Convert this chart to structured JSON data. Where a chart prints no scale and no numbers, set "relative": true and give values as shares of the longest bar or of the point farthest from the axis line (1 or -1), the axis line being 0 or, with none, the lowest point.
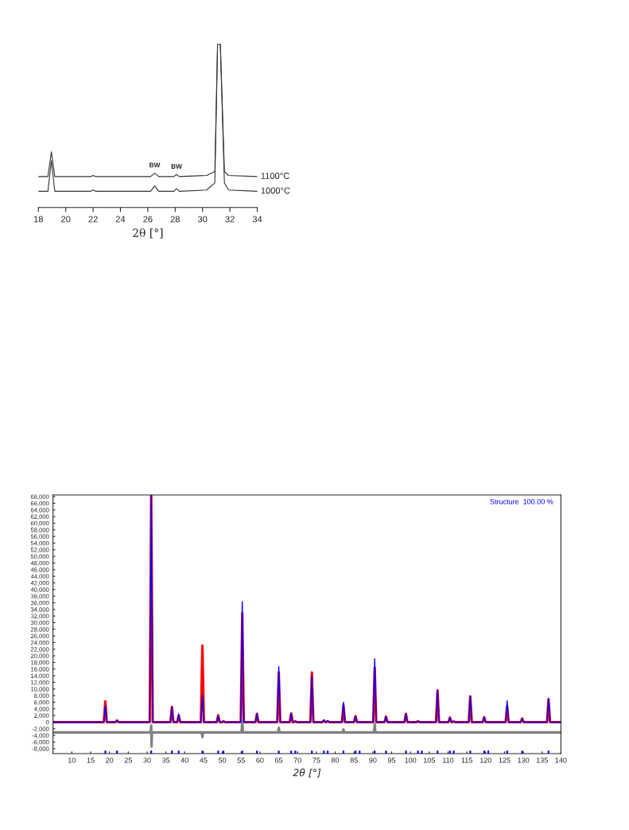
{
  "chart_data": [
    {
      "type": "line",
      "relative": true,
      "xlabel": "2θ [°]",
      "tick_labels": "x",
      "x": [
        18,
        18.7,
        18.95,
        19.2,
        21.8,
        22.0,
        22.2,
        26.2,
        26.5,
        26.8,
        27.9,
        28.1,
        28.3,
        30.3,
        30.9,
        31.1,
        31.3,
        31.6,
        31.9,
        34
      ],
      "xlim": [
        18,
        34
      ],
      "xticks": [
        18,
        20,
        22,
        24,
        26,
        28,
        30,
        32,
        34
      ],
      "series": [
        {
          "name": "1100°C",
          "color": "#333333",
          "values": [
            0.189,
            0.189,
            0.341,
            0.189,
            0.189,
            0.196,
            0.189,
            0.189,
            0.21,
            0.189,
            0.189,
            0.202,
            0.189,
            0.196,
            0.22,
            1,
            1,
            0.22,
            0.196,
            0.189
          ]
        },
        {
          "name": "1000°C",
          "color": "#333333",
          "values": [
            0.099,
            0.099,
            0.287,
            0.099,
            0.099,
            0.107,
            0.099,
            0.099,
            0.132,
            0.099,
            0.099,
            0.115,
            0.099,
            0.107,
            0.15,
            1,
            1,
            0.15,
            0.107,
            0.099
          ]
        }
      ],
      "annotations": [
        {
          "text": "BW",
          "x": 26.5,
          "y": 0.21
        },
        {
          "text": "BW",
          "x": 28.1,
          "y": 0.202
        }
      ],
      "grid": false,
      "legend": false
    },
    {
      "type": "line",
      "xlabel": "2θ [°]",
      "x": [
        5,
        18.5,
        18.9,
        19.3,
        21.6,
        22.0,
        22.4,
        30.7,
        31.1,
        31.5,
        36.2,
        36.6,
        37.0,
        38.0,
        38.4,
        38.8,
        44.3,
        44.7,
        45.1,
        48.5,
        48.9,
        49.3,
        49.9,
        50.3,
        50.7,
        54.9,
        55.3,
        55.7,
        58.8,
        59.2,
        59.6,
        64.6,
        65.0,
        65.4,
        67.9,
        68.3,
        68.7,
        69.0,
        69.4,
        69.8,
        73.4,
        73.8,
        74.2,
        76.6,
        77.0,
        77.4,
        77.6,
        78.0,
        78.4,
        81.8,
        82.2,
        82.6,
        85.0,
        85.4,
        85.8,
        90.1,
        90.5,
        90.9,
        93.1,
        93.5,
        93.9,
        98.4,
        98.8,
        99.2,
        101.6,
        102.0,
        102.4,
        106.8,
        107.2,
        107.6,
        110.1,
        110.5,
        110.9,
        111.1,
        111.5,
        111.9,
        115.5,
        115.9,
        116.3,
        119.2,
        119.6,
        120.0,
        125.3,
        125.7,
        126.1,
        129.3,
        129.7,
        130.1,
        136.3,
        136.7,
        137.1,
        140
      ],
      "xlim": [
        5,
        140
      ],
      "xticks": [
        10,
        15,
        20,
        25,
        30,
        35,
        40,
        45,
        50,
        55,
        60,
        65,
        70,
        75,
        80,
        85,
        90,
        95,
        100,
        105,
        110,
        115,
        120,
        125,
        130,
        135,
        140
      ],
      "ylim": [
        -9500,
        68500
      ],
      "yticks": [
        {
          "value": -8000,
          "label": "-8,000"
        },
        {
          "value": -6000,
          "label": "-6,000"
        },
        {
          "value": -4000,
          "label": "-4,000"
        },
        {
          "value": -2000,
          "label": "-2,000"
        },
        0,
        {
          "value": 2000,
          "label": "2,000"
        },
        {
          "value": 4000,
          "label": "4,000"
        },
        {
          "value": 6000,
          "label": "6,000"
        },
        {
          "value": 8000,
          "label": "8,000"
        },
        {
          "value": 10000,
          "label": "10,000"
        },
        {
          "value": 12000,
          "label": "12,000"
        },
        {
          "value": 14000,
          "label": "14,000"
        },
        {
          "value": 16000,
          "label": "16,000"
        },
        {
          "value": 18000,
          "label": "18,000"
        },
        {
          "value": 20000,
          "label": "20,000"
        },
        {
          "value": 22000,
          "label": "22,000"
        },
        {
          "value": 24000,
          "label": "24,000"
        },
        {
          "value": 26000,
          "label": "26,000"
        },
        {
          "value": 28000,
          "label": "28,000"
        },
        {
          "value": 30000,
          "label": "30,000"
        },
        {
          "value": 32000,
          "label": "32,000"
        },
        {
          "value": 34000,
          "label": "34,000"
        },
        {
          "value": 36000,
          "label": "36,000"
        },
        {
          "value": 38000,
          "label": "38,000"
        },
        {
          "value": 40000,
          "label": "40,000"
        },
        {
          "value": 42000,
          "label": "42,000"
        },
        {
          "value": 44000,
          "label": "44,000"
        },
        {
          "value": 46000,
          "label": "46,000"
        },
        {
          "value": 48000,
          "label": "48,000"
        },
        {
          "value": 50000,
          "label": "50,000"
        },
        {
          "value": 52000,
          "label": "52,000"
        },
        {
          "value": 54000,
          "label": "54,000"
        },
        {
          "value": 56000,
          "label": "56,000"
        },
        {
          "value": 58000,
          "label": "58,000"
        },
        {
          "value": 60000,
          "label": "60,000"
        },
        {
          "value": 62000,
          "label": "62,000"
        },
        {
          "value": 64000,
          "label": "64,000"
        },
        {
          "value": 66000,
          "label": "66,000"
        },
        {
          "value": 68000,
          "label": "68,000"
        }
      ],
      "series": [
        {
          "color": "#0000ff",
          "values": [
            0,
            0,
            5000,
            0,
            0,
            500,
            0,
            0,
            68500,
            0,
            0,
            4600,
            0,
            0,
            2500,
            0,
            0,
            8100,
            0,
            0,
            1800,
            0,
            0,
            300,
            0,
            0,
            36300,
            0,
            0,
            2500,
            0,
            0,
            16800,
            0,
            0,
            2600,
            0,
            0,
            300,
            0,
            0,
            14000,
            0,
            0,
            700,
            0,
            0,
            500,
            0,
            0,
            6000,
            0,
            0,
            1800,
            0,
            0,
            19100,
            0,
            0,
            1700,
            0,
            0,
            2500,
            0,
            0,
            300,
            0,
            0,
            9600,
            0,
            0,
            1400,
            0,
            0,
            200,
            0,
            0,
            7800,
            0,
            0,
            1500,
            0,
            0,
            6400,
            0,
            0,
            1100,
            0,
            0,
            7200,
            0,
            0
          ]
        },
        {
          "color": "#ff0000",
          "values": [
            0,
            0,
            6300,
            0,
            0,
            500,
            0,
            0,
            68500,
            0,
            0,
            4600,
            0,
            0,
            2000,
            0,
            0,
            23100,
            0,
            0,
            2100,
            0,
            0,
            300,
            0,
            0,
            32900,
            0,
            0,
            2500,
            0,
            0,
            15000,
            0,
            0,
            2600,
            0,
            0,
            300,
            0,
            0,
            15000,
            0,
            0,
            500,
            0,
            0,
            300,
            0,
            0,
            5100,
            0,
            0,
            1800,
            0,
            0,
            16500,
            0,
            0,
            1700,
            0,
            0,
            2500,
            0,
            0,
            300,
            0,
            0,
            9600,
            0,
            0,
            1400,
            0,
            0,
            200,
            0,
            0,
            7800,
            0,
            0,
            1500,
            0,
            0,
            4800,
            0,
            0,
            1100,
            0,
            0,
            6900,
            0,
            0
          ]
        },
        {
          "color": "#808080",
          "x": [
            5,
            30.9,
            31.1,
            31.2,
            31.3,
            44.5,
            44.7,
            44.9,
            55.1,
            55.3,
            55.5,
            64.8,
            65.0,
            65.2,
            82.0,
            82.2,
            82.4,
            90.3,
            90.5,
            90.7,
            140
          ],
          "values": [
            -3100,
            -3100,
            -1000,
            -7400,
            -3100,
            -3100,
            -4500,
            -3100,
            -3100,
            300,
            -3100,
            -3100,
            -1700,
            -3100,
            -3100,
            -2200,
            -3100,
            -3100,
            -600,
            -3100,
            -3100
          ]
        },
        {
          "type": "bar",
          "base": [
            -9500,
            -9500,
            -9500,
            -9500,
            -9500,
            -9500,
            -9500,
            -9500,
            -9500,
            -9500,
            -9500,
            -9500,
            -9500,
            -9500,
            -9500,
            -9500,
            -9500,
            -9500,
            -9500,
            -9500,
            -9500,
            -9500,
            -9500,
            -9500,
            -9500,
            -9500,
            -9500,
            -9500,
            -9500,
            -9500,
            -9500,
            -9500,
            -9500
          ],
          "color": "#0000ff",
          "x": [
            18.9,
            22,
            31.1,
            36.6,
            38.4,
            44.7,
            48.9,
            50.3,
            55.3,
            59.2,
            65,
            68.3,
            69.4,
            73.8,
            77,
            78,
            82.2,
            85.4,
            86.5,
            90.5,
            93.5,
            98.8,
            102,
            103,
            107.2,
            110.5,
            111.5,
            115.9,
            119.6,
            120.7,
            125.7,
            129.7,
            136.7
          ],
          "values": [
            900,
            900,
            900,
            900,
            900,
            900,
            900,
            900,
            900,
            900,
            900,
            900,
            900,
            900,
            900,
            900,
            900,
            900,
            900,
            900,
            900,
            900,
            900,
            900,
            900,
            900,
            900,
            900,
            900,
            900,
            900,
            900,
            900
          ]
        }
      ],
      "annotations": [
        "Structure  100.00 %"
      ],
      "grid": false,
      "legend": false
    }
  ]
}
